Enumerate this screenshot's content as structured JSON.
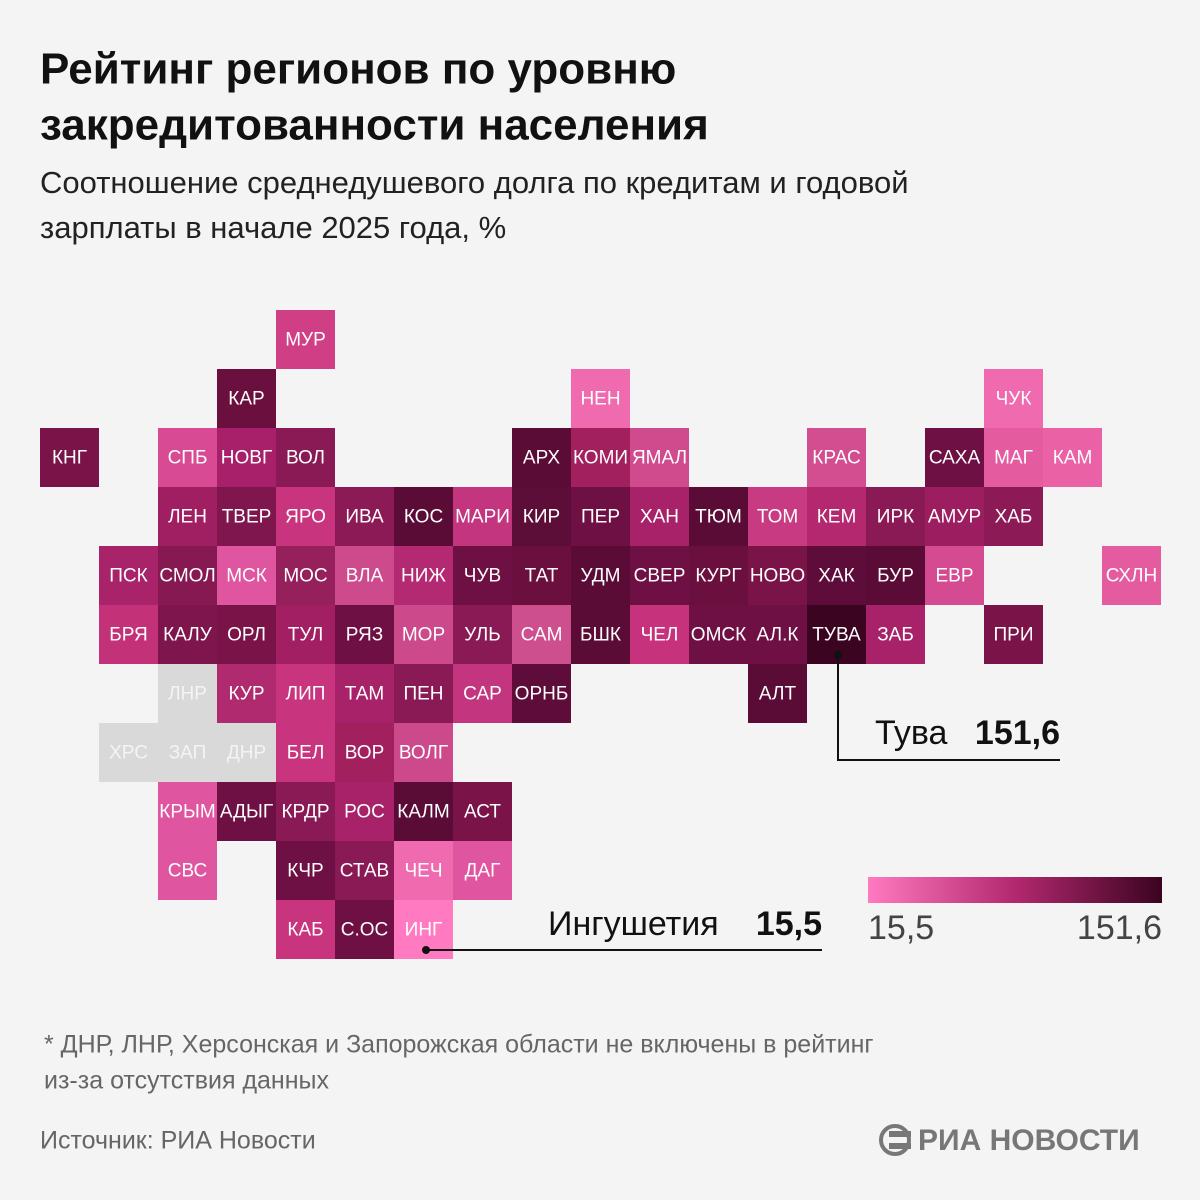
{
  "header": {
    "title": [
      "Рейтинг регионов по уровню",
      "закредитованности населения"
    ],
    "subtitle": [
      "Соотношение среднедушевого долга по кредитам и годовой",
      "зарплаты в начале 2025 года, %"
    ]
  },
  "tiles": [
    {
      "label": "МУР",
      "color": "#d03f86"
    },
    {
      "label": "КАР",
      "color": "#6b0f3f"
    },
    {
      "label": "НЕН",
      "color": "#f06ab0"
    },
    {
      "label": "ЧУК",
      "color": "#f06ab0"
    },
    {
      "label": "КНГ",
      "color": "#7a1448"
    },
    {
      "label": "СПБ",
      "color": "#d84a93"
    },
    {
      "label": "НОВГ",
      "color": "#a8206a"
    },
    {
      "label": "ВОЛ",
      "color": "#8a1a55"
    },
    {
      "label": "АРХ",
      "color": "#5a0c36"
    },
    {
      "label": "КОМИ",
      "color": "#a3205f"
    },
    {
      "label": "ЯМАЛ",
      "color": "#d04a8e"
    },
    {
      "label": "КРАС",
      "color": "#d24e90"
    },
    {
      "label": "САХА",
      "color": "#6e1043"
    },
    {
      "label": "МАГ",
      "color": "#e55ba0"
    },
    {
      "label": "КАМ",
      "color": "#ea61a6"
    },
    {
      "label": "ЛЕН",
      "color": "#a01e62"
    },
    {
      "label": "ТВЕР",
      "color": "#80164e"
    },
    {
      "label": "ЯРО",
      "color": "#c8357e"
    },
    {
      "label": "ИВА",
      "color": "#8c1a57"
    },
    {
      "label": "КОС",
      "color": "#5a0c36"
    },
    {
      "label": "МАРИ",
      "color": "#c43580"
    },
    {
      "label": "КИР",
      "color": "#5c0d38"
    },
    {
      "label": "ПЕР",
      "color": "#6e1043"
    },
    {
      "label": "ХАН",
      "color": "#a8226a"
    },
    {
      "label": "ТЮМ",
      "color": "#5a0c36"
    },
    {
      "label": "ТОМ",
      "color": "#c83a82"
    },
    {
      "label": "КЕМ",
      "color": "#b3286f"
    },
    {
      "label": "ИРК",
      "color": "#8a1a55"
    },
    {
      "label": "АМУР",
      "color": "#9c1d60"
    },
    {
      "label": "ХАБ",
      "color": "#8c1a57"
    },
    {
      "label": "ПСК",
      "color": "#a8236a"
    },
    {
      "label": "СМОЛ",
      "color": "#861852"
    },
    {
      "label": "МСК",
      "color": "#e055a0"
    },
    {
      "label": "МОС",
      "color": "#95205c"
    },
    {
      "label": "ВЛА",
      "color": "#cd4a8c"
    },
    {
      "label": "НИЖ",
      "color": "#b42a72"
    },
    {
      "label": "ЧУВ",
      "color": "#6e1043"
    },
    {
      "label": "ТАТ",
      "color": "#6b0f3f"
    },
    {
      "label": "УДМ",
      "color": "#5a0c36"
    },
    {
      "label": "СВЕР",
      "color": "#6e1043"
    },
    {
      "label": "КУРГ",
      "color": "#6b0f3f"
    },
    {
      "label": "НОВО",
      "color": "#7a1448"
    },
    {
      "label": "ХАК",
      "color": "#5e0d3a"
    },
    {
      "label": "БУР",
      "color": "#5a0c36"
    },
    {
      "label": "ЕВР",
      "color": "#d44b91"
    },
    {
      "label": "СХЛН",
      "color": "#e55ba0"
    },
    {
      "label": "БРЯ",
      "color": "#c33279"
    },
    {
      "label": "КАЛУ",
      "color": "#7e164d"
    },
    {
      "label": "ОРЛ",
      "color": "#7a1448"
    },
    {
      "label": "ТУЛ",
      "color": "#a31f64"
    },
    {
      "label": "РЯЗ",
      "color": "#6e1043"
    },
    {
      "label": "МОР",
      "color": "#cc4a8c"
    },
    {
      "label": "УЛЬ",
      "color": "#8a1a55"
    },
    {
      "label": "САМ",
      "color": "#cd4f8e"
    },
    {
      "label": "БШК",
      "color": "#5a0c36"
    },
    {
      "label": "ЧЕЛ",
      "color": "#c7327c"
    },
    {
      "label": "ОМСК",
      "color": "#6e1043"
    },
    {
      "label": "АЛ.К",
      "color": "#6e1043"
    },
    {
      "label": "ТУВА",
      "color": "#3b0420"
    },
    {
      "label": "ЗАБ",
      "color": "#a8226a"
    },
    {
      "label": "ПРИ",
      "color": "#7a1448"
    },
    {
      "label": "ЛНР",
      "color": "#d9d9d9"
    },
    {
      "label": "КУР",
      "color": "#b02a70"
    },
    {
      "label": "ЛИП",
      "color": "#c8357e"
    },
    {
      "label": "ТАМ",
      "color": "#a8226a"
    },
    {
      "label": "ПЕН",
      "color": "#8a1a55"
    },
    {
      "label": "САР",
      "color": "#c43580"
    },
    {
      "label": "ОРНБ",
      "color": "#5e0d3a"
    },
    {
      "label": "АЛТ",
      "color": "#5a0c36"
    },
    {
      "label": "ХРС",
      "color": "#d9d9d9"
    },
    {
      "label": "ЗАП",
      "color": "#d9d9d9"
    },
    {
      "label": "ДНР",
      "color": "#d9d9d9"
    },
    {
      "label": "БЕЛ",
      "color": "#c8357e"
    },
    {
      "label": "ВОР",
      "color": "#a3205f"
    },
    {
      "label": "ВОЛГ",
      "color": "#cc4a8c"
    },
    {
      "label": "КРЫМ",
      "color": "#e055a0"
    },
    {
      "label": "АДЫГ",
      "color": "#6e1043"
    },
    {
      "label": "КРДР",
      "color": "#8a1a55"
    },
    {
      "label": "РОС",
      "color": "#a8226a"
    },
    {
      "label": "КАЛМ",
      "color": "#5a0c36"
    },
    {
      "label": "АСТ",
      "color": "#7a1448"
    },
    {
      "label": "СВС",
      "color": "#e055a0"
    },
    {
      "label": "КЧР",
      "color": "#6e1043"
    },
    {
      "label": "СТАВ",
      "color": "#8a1a55"
    },
    {
      "label": "ЧЕЧ",
      "color": "#f06ab0"
    },
    {
      "label": "ДАГ",
      "color": "#e055a0"
    },
    {
      "label": "КАБ",
      "color": "#c8357e"
    },
    {
      "label": "С.ОС",
      "color": "#6e1043"
    },
    {
      "label": "ИНГ",
      "color": "#ff7ac0"
    }
  ],
  "annotations": [
    {
      "name": "Тува",
      "value": "151,6"
    },
    {
      "name": "Ингушетия",
      "value": "15,5"
    }
  ],
  "legend": {
    "min": "15,5",
    "max": "151,6",
    "colors": [
      "#ff7ac0",
      "#b3286f",
      "#3b0420"
    ]
  },
  "footnote": [
    "* ДНР, ЛНР, Херсонская и Запорожская области не включены в рейтинг",
    "из-за отсутствия данных"
  ],
  "source": "Источник: РИА Новости",
  "logo": "РИА НОВОСТИ"
}
